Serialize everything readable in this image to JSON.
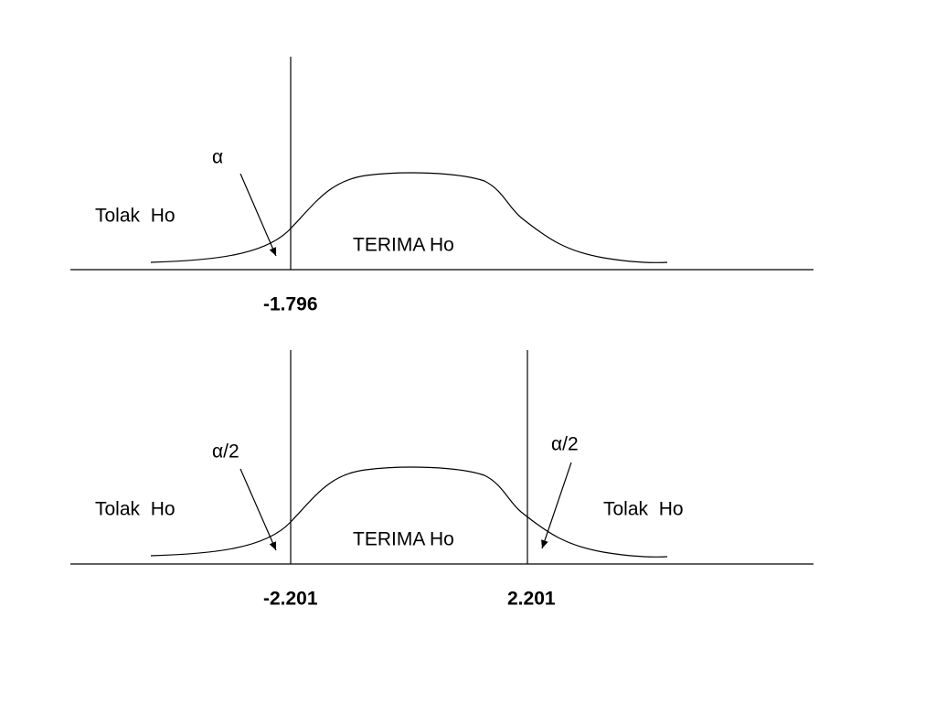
{
  "diagrams": [
    {
      "alpha_label": "α",
      "reject_label": "Tolak  Ho",
      "accept_label": "TERIMA Ho",
      "critical_values": [
        "-1.796"
      ]
    },
    {
      "alpha_left_label": "α/2",
      "alpha_right_label": "α/2",
      "reject_left_label": "Tolak  Ho",
      "reject_right_label": "Tolak  Ho",
      "accept_label": "TERIMA Ho",
      "critical_values": [
        "-2.201",
        "2.201"
      ]
    }
  ]
}
